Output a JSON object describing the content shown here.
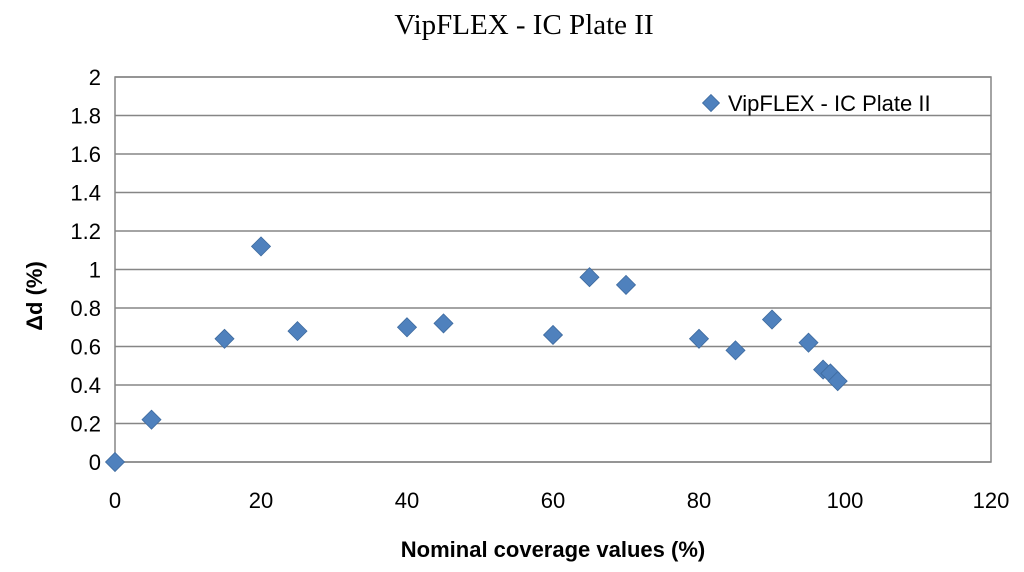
{
  "chart_data": {
    "type": "scatter",
    "title": "VipFLEX - IC Plate II",
    "xlabel": "Nominal coverage values (%)",
    "ylabel": "Δd (%)",
    "xlim": [
      0,
      120
    ],
    "ylim": [
      0,
      2
    ],
    "xticks": [
      "0",
      "20",
      "40",
      "60",
      "80",
      "100",
      "120"
    ],
    "yticks": [
      "0",
      "0.2",
      "0.4",
      "0.6",
      "0.8",
      "1",
      "1.2",
      "1.4",
      "1.6",
      "1.8",
      "2"
    ],
    "grid": true,
    "legend_position": "top-right",
    "series": [
      {
        "name": "VipFLEX - IC Plate II",
        "color": "#4F81BD",
        "marker": "diamond",
        "x": [
          0,
          5,
          15,
          20,
          25,
          40,
          45,
          60,
          65,
          70,
          80,
          85,
          90,
          95,
          97,
          98,
          99
        ],
        "y": [
          0,
          0.22,
          0.64,
          1.12,
          0.68,
          0.7,
          0.72,
          0.66,
          0.96,
          0.92,
          0.64,
          0.58,
          0.74,
          0.62,
          0.48,
          0.46,
          0.42
        ]
      }
    ]
  }
}
